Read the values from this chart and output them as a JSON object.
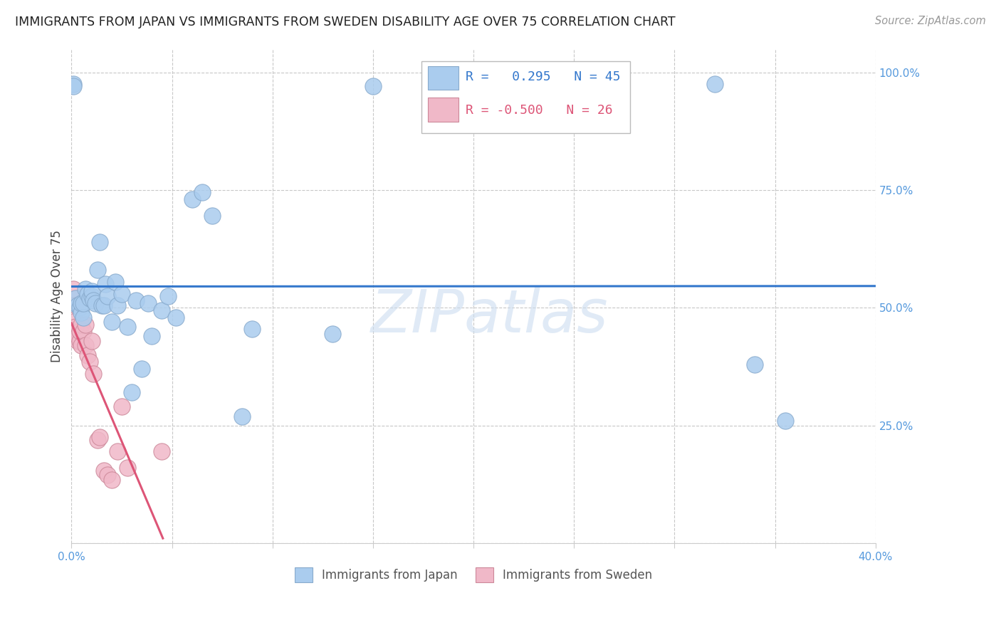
{
  "title": "IMMIGRANTS FROM JAPAN VS IMMIGRANTS FROM SWEDEN DISABILITY AGE OVER 75 CORRELATION CHART",
  "source": "Source: ZipAtlas.com",
  "ylabel": "Disability Age Over 75",
  "x_min": 0.0,
  "x_max": 0.4,
  "y_min": 0.0,
  "y_max": 1.05,
  "x_ticks": [
    0.0,
    0.05,
    0.1,
    0.15,
    0.2,
    0.25,
    0.3,
    0.35,
    0.4
  ],
  "x_tick_labels": [
    "0.0%",
    "",
    "",
    "",
    "",
    "",
    "",
    "",
    "40.0%"
  ],
  "y_ticks": [
    0.0,
    0.25,
    0.5,
    0.75,
    1.0
  ],
  "y_tick_labels": [
    "",
    "25.0%",
    "50.0%",
    "75.0%",
    "100.0%"
  ],
  "grid_color": "#c8c8c8",
  "watermark_text": "ZIPatlas",
  "japan_color": "#aaccee",
  "japan_edge": "#88aacc",
  "sweden_color": "#f0b8c8",
  "sweden_edge": "#cc8899",
  "japan_line_color": "#3377cc",
  "sweden_line_color": "#dd5577",
  "R_japan": 0.295,
  "N_japan": 45,
  "R_sweden": -0.5,
  "N_sweden": 26,
  "japan_points_x": [
    0.001,
    0.001,
    0.002,
    0.003,
    0.004,
    0.005,
    0.005,
    0.006,
    0.006,
    0.007,
    0.008,
    0.009,
    0.01,
    0.01,
    0.011,
    0.012,
    0.013,
    0.014,
    0.015,
    0.016,
    0.017,
    0.018,
    0.02,
    0.022,
    0.023,
    0.025,
    0.028,
    0.03,
    0.032,
    0.035,
    0.038,
    0.04,
    0.045,
    0.048,
    0.052,
    0.06,
    0.065,
    0.07,
    0.085,
    0.09,
    0.13,
    0.15,
    0.32,
    0.34,
    0.355
  ],
  "japan_points_y": [
    0.975,
    0.97,
    0.52,
    0.505,
    0.5,
    0.49,
    0.51,
    0.48,
    0.51,
    0.54,
    0.53,
    0.52,
    0.525,
    0.535,
    0.515,
    0.51,
    0.58,
    0.64,
    0.505,
    0.505,
    0.55,
    0.525,
    0.47,
    0.555,
    0.505,
    0.53,
    0.46,
    0.32,
    0.515,
    0.37,
    0.51,
    0.44,
    0.495,
    0.525,
    0.48,
    0.73,
    0.745,
    0.695,
    0.27,
    0.455,
    0.445,
    0.97,
    0.975,
    0.38,
    0.26
  ],
  "sweden_points_x": [
    0.001,
    0.001,
    0.002,
    0.002,
    0.003,
    0.003,
    0.004,
    0.004,
    0.005,
    0.005,
    0.006,
    0.007,
    0.007,
    0.008,
    0.009,
    0.01,
    0.011,
    0.013,
    0.014,
    0.016,
    0.018,
    0.02,
    0.023,
    0.025,
    0.028,
    0.045
  ],
  "sweden_points_y": [
    0.54,
    0.47,
    0.46,
    0.505,
    0.43,
    0.44,
    0.43,
    0.45,
    0.465,
    0.42,
    0.45,
    0.42,
    0.465,
    0.4,
    0.385,
    0.43,
    0.36,
    0.22,
    0.225,
    0.155,
    0.145,
    0.135,
    0.195,
    0.29,
    0.16,
    0.195
  ],
  "legend_R_japan_text": "R =   0.295   N = 45",
  "legend_R_sweden_text": "R = -0.500   N = 26",
  "legend_japan_label": "Immigrants from Japan",
  "legend_sweden_label": "Immigrants from Sweden"
}
